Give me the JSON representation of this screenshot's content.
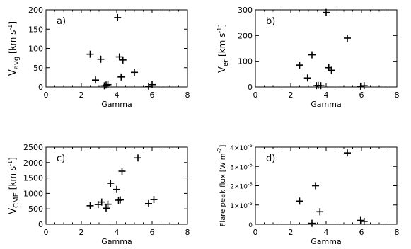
{
  "chart_data": [
    {
      "type": "scatter",
      "panel_label": "a)",
      "xlabel": "Gamma",
      "ylabel_main": "V",
      "ylabel_sub": "avg",
      "ylabel_units": " [km s",
      "ylabel_exp": "-1",
      "ylabel_close": "]",
      "xlim": [
        0,
        8
      ],
      "ylim": [
        0,
        200
      ],
      "xticks": [
        "0",
        "2",
        "4",
        "6",
        "8"
      ],
      "yticks": [
        "0",
        "50",
        "100",
        "150",
        "200"
      ],
      "x": [
        2.5,
        2.8,
        3.1,
        3.3,
        3.4,
        3.5,
        4.05,
        4.15,
        4.25,
        4.35,
        5.0,
        5.8,
        6.0
      ],
      "y": [
        85,
        18,
        72,
        3,
        5,
        6,
        180,
        78,
        26,
        70,
        38,
        2,
        6
      ]
    },
    {
      "type": "scatter",
      "panel_label": "b)",
      "xlabel": "Gamma",
      "ylabel_main": "V",
      "ylabel_sub": "er",
      "ylabel_units": " [km s",
      "ylabel_exp": "-1",
      "ylabel_close": "]",
      "xlim": [
        0,
        8
      ],
      "ylim": [
        0,
        300
      ],
      "xticks": [
        "0",
        "2",
        "4",
        "6",
        "8"
      ],
      "yticks": [
        "0",
        "100",
        "200",
        "300"
      ],
      "x": [
        2.5,
        2.95,
        3.2,
        3.45,
        3.55,
        3.7,
        4.0,
        4.15,
        4.3,
        5.2,
        5.95,
        6.15
      ],
      "y": [
        85,
        35,
        125,
        5,
        6,
        5,
        290,
        75,
        65,
        190,
        3,
        5
      ]
    },
    {
      "type": "scatter",
      "panel_label": "c)",
      "xlabel": "Gamma",
      "ylabel_main": "V",
      "ylabel_sub": "CME",
      "ylabel_units": " [km s",
      "ylabel_exp": "-1",
      "ylabel_close": "]",
      "xlim": [
        0,
        8
      ],
      "ylim": [
        0,
        2500
      ],
      "xticks": [
        "0",
        "2",
        "4",
        "6",
        "8"
      ],
      "yticks": [
        "0",
        "500",
        "1000",
        "1500",
        "2000",
        "2500"
      ],
      "x": [
        2.5,
        2.95,
        3.15,
        3.4,
        3.5,
        3.65,
        4.0,
        4.1,
        4.2,
        4.3,
        5.2,
        5.8,
        6.1
      ],
      "y": [
        600,
        640,
        720,
        520,
        650,
        1330,
        1130,
        780,
        790,
        1720,
        2150,
        670,
        800
      ]
    },
    {
      "type": "scatter",
      "panel_label": "d)",
      "xlabel": "Gamma",
      "ylabel_text": "Flare peak flux [W m",
      "ylabel_exp": "-2",
      "ylabel_close": "]",
      "xlim": [
        0,
        8
      ],
      "ylim": [
        0,
        4e-05
      ],
      "xticks": [
        "0",
        "2",
        "4",
        "6",
        "8"
      ],
      "yticks": [
        {
          "label": "0",
          "value": 0
        },
        {
          "label": "1×10",
          "exp": "-5",
          "value": 1e-05
        },
        {
          "label": "2×10",
          "exp": "-5",
          "value": 2e-05
        },
        {
          "label": "3×10",
          "exp": "-5",
          "value": 3e-05
        },
        {
          "label": "4×10",
          "exp": "-5",
          "value": 4e-05
        }
      ],
      "x": [
        2.5,
        3.2,
        3.4,
        3.65,
        5.2,
        5.95,
        6.15
      ],
      "y": [
        1.2e-05,
        5e-07,
        2e-05,
        6.5e-06,
        3.7e-05,
        2e-06,
        1.5e-06
      ]
    }
  ]
}
